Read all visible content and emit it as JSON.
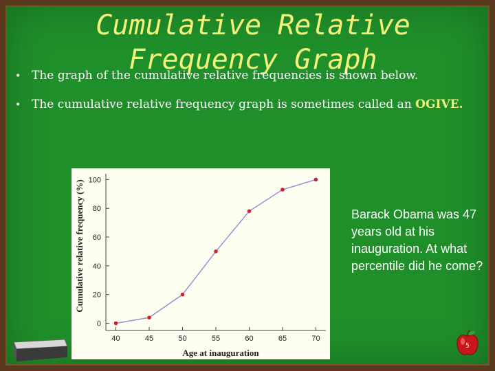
{
  "slide": {
    "title_line1": "Cumulative Relative",
    "title_line2": "Frequency Graph",
    "bullet1": "The graph of the cumulative relative frequencies is shown below.",
    "bullet2_prefix": "The cumulative relative frequency graph is sometimes called an ",
    "bullet2_emphasis": "OGIVE.",
    "side_text": "Barack Obama was 47 years old at his inauguration.  At what percentile did he come?",
    "slide_number": "5",
    "bullet_char": "•"
  },
  "colors": {
    "board_green": "#1f8f2a",
    "frame_brown": "#5a3a1e",
    "title_yellow": "#f2f27a",
    "line_color": "#9a8fd0",
    "point_color": "#d0202a"
  },
  "chart_data": {
    "type": "line",
    "x": [
      40,
      45,
      50,
      55,
      60,
      65,
      70
    ],
    "y": [
      0,
      4,
      20,
      50,
      78,
      93,
      100
    ],
    "xlabel": "Age at inauguration",
    "ylabel": "Cumulative relative frequency (%)",
    "xticks": [
      "40",
      "45",
      "50",
      "55",
      "60",
      "65",
      "70"
    ],
    "yticks": [
      "0",
      "20",
      "40",
      "60",
      "80",
      "100"
    ],
    "xlim": [
      38.5,
      71.5
    ],
    "ylim": [
      -5,
      104
    ],
    "grid": false
  }
}
